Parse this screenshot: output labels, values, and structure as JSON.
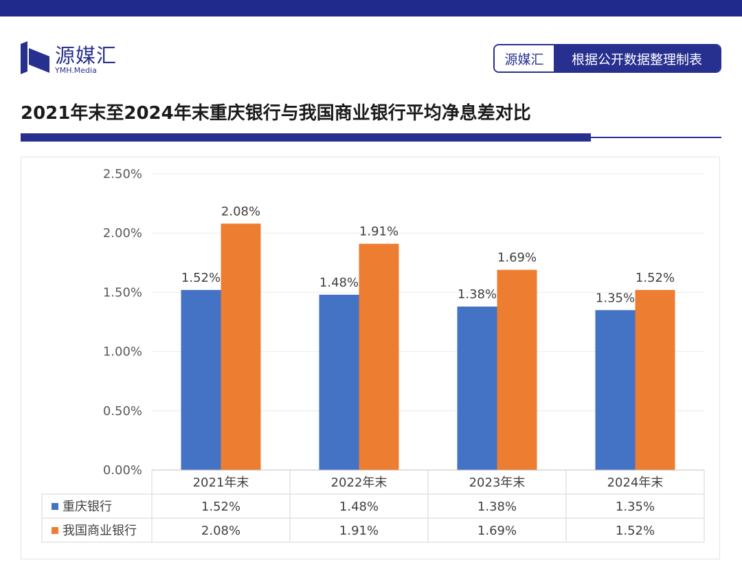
{
  "header": {
    "logo_text": "源媒汇",
    "logo_sub": "YMH.Media",
    "source_brand": "源媒汇",
    "source_note": "根据公开数据整理制表"
  },
  "title": "2021年末至2024年末重庆银行与我国商业银行平均净息差对比",
  "colors": {
    "navy": "#27308f",
    "series1": "#4472c4",
    "series2": "#ed7d31"
  },
  "chart_data": {
    "type": "bar",
    "categories": [
      "2021年末",
      "2022年末",
      "2023年末",
      "2024年末"
    ],
    "series": [
      {
        "name": "重庆银行",
        "values": [
          1.52,
          1.48,
          1.38,
          1.35
        ],
        "labels": [
          "1.52%",
          "1.48%",
          "1.38%",
          "1.35%"
        ],
        "color": "#4472c4"
      },
      {
        "name": "我国商业银行",
        "values": [
          2.08,
          1.91,
          1.69,
          1.52
        ],
        "labels": [
          "2.08%",
          "1.91%",
          "1.69%",
          "1.52%"
        ],
        "color": "#ed7d31"
      }
    ],
    "ylim": [
      0,
      2.5
    ],
    "yticks": [
      "0.00%",
      "0.50%",
      "1.00%",
      "1.50%",
      "2.00%",
      "2.50%"
    ],
    "ytick_values": [
      0,
      0.5,
      1.0,
      1.5,
      2.0,
      2.5
    ],
    "grid": true,
    "data_table": true
  }
}
